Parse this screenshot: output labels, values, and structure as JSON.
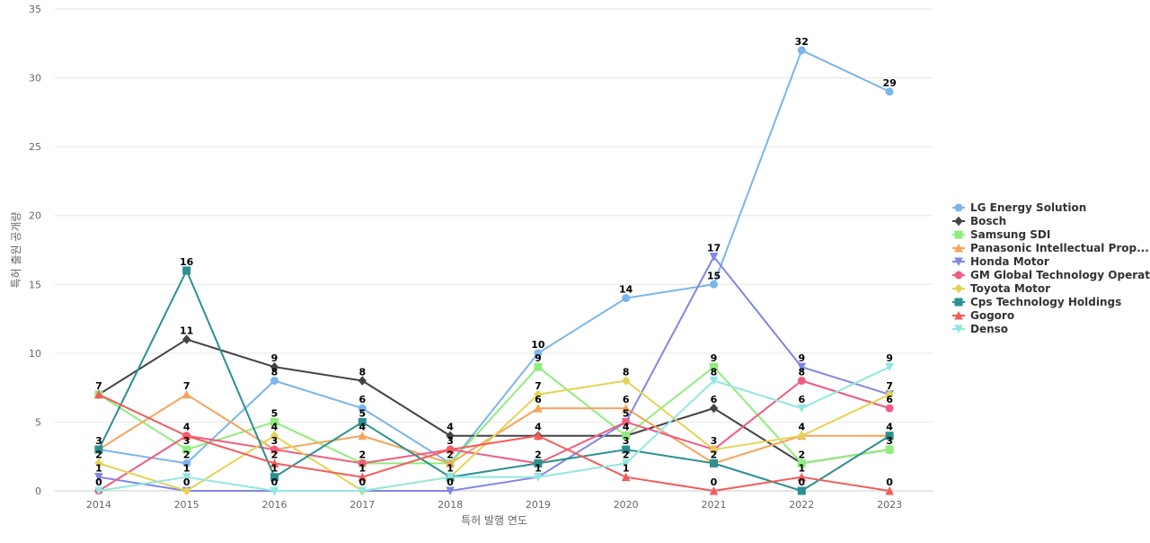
{
  "chart_data": {
    "type": "line",
    "xlabel": "특허 발행 연도",
    "ylabel": "특허 출원 공개량",
    "ylim": [
      0,
      35
    ],
    "yticks": [
      0,
      5,
      10,
      15,
      20,
      25,
      30,
      35
    ],
    "grid": true,
    "legend": "right",
    "categories": [
      "2014",
      "2015",
      "2016",
      "2017",
      "2018",
      "2019",
      "2020",
      "2021",
      "2022",
      "2023"
    ],
    "series": [
      {
        "name": "LG Energy Solution",
        "color": "#7cb5ec",
        "marker": "circle",
        "values": [
          3,
          2,
          8,
          6,
          2,
          10,
          14,
          15,
          32,
          29
        ]
      },
      {
        "name": "Bosch",
        "color": "#434348",
        "marker": "diamond",
        "values": [
          7,
          11,
          9,
          8,
          4,
          4,
          4,
          6,
          2,
          3
        ]
      },
      {
        "name": "Samsung SDI",
        "color": "#90ed7d",
        "marker": "square",
        "values": [
          7,
          3,
          5,
          2,
          2,
          9,
          4,
          9,
          2,
          3
        ]
      },
      {
        "name": "Panasonic Intellectual Prop...",
        "color": "#f7a35c",
        "marker": "triangle",
        "values": [
          3,
          7,
          3,
          4,
          2,
          6,
          6,
          2,
          4,
          4
        ]
      },
      {
        "name": "Honda Motor",
        "color": "#8085e9",
        "marker": "triangle-down",
        "values": [
          1,
          0,
          0,
          0,
          0,
          1,
          5,
          17,
          9,
          7
        ]
      },
      {
        "name": "GM Global Technology Operat...",
        "color": "#f15c80",
        "marker": "circle",
        "values": [
          0,
          4,
          3,
          2,
          3,
          2,
          5,
          3,
          8,
          6
        ]
      },
      {
        "name": "Toyota Motor",
        "color": "#e4d354",
        "marker": "diamond",
        "values": [
          2,
          0,
          4,
          0,
          1,
          7,
          8,
          3,
          4,
          7
        ]
      },
      {
        "name": "Cps Technology Holdings",
        "color": "#2b908f",
        "marker": "square",
        "values": [
          3,
          16,
          1,
          5,
          1,
          2,
          3,
          2,
          0,
          4
        ]
      },
      {
        "name": "Gogoro",
        "color": "#f45b5b",
        "marker": "triangle",
        "values": [
          7,
          4,
          2,
          1,
          3,
          4,
          1,
          0,
          1,
          0
        ]
      },
      {
        "name": "Denso",
        "color": "#91e8e1",
        "marker": "triangle-down",
        "values": [
          0,
          1,
          0,
          0,
          1,
          1,
          2,
          8,
          6,
          9
        ]
      }
    ],
    "data_labels": [
      {
        "cat": 0,
        "value": 7
      },
      {
        "cat": 0,
        "value": 3
      },
      {
        "cat": 0,
        "value": 2
      },
      {
        "cat": 0,
        "value": 1
      },
      {
        "cat": 0,
        "value": 0
      },
      {
        "cat": 1,
        "value": 16
      },
      {
        "cat": 1,
        "value": 11
      },
      {
        "cat": 1,
        "value": 7
      },
      {
        "cat": 1,
        "value": 4
      },
      {
        "cat": 1,
        "value": 3
      },
      {
        "cat": 1,
        "value": 2
      },
      {
        "cat": 1,
        "value": 1
      },
      {
        "cat": 1,
        "value": 0
      },
      {
        "cat": 2,
        "value": 9
      },
      {
        "cat": 2,
        "value": 8
      },
      {
        "cat": 2,
        "value": 5
      },
      {
        "cat": 2,
        "value": 4
      },
      {
        "cat": 2,
        "value": 3
      },
      {
        "cat": 2,
        "value": 2
      },
      {
        "cat": 2,
        "value": 1
      },
      {
        "cat": 2,
        "value": 0
      },
      {
        "cat": 3,
        "value": 8
      },
      {
        "cat": 3,
        "value": 6
      },
      {
        "cat": 3,
        "value": 5
      },
      {
        "cat": 3,
        "value": 4
      },
      {
        "cat": 3,
        "value": 2
      },
      {
        "cat": 3,
        "value": 1
      },
      {
        "cat": 3,
        "value": 0
      },
      {
        "cat": 4,
        "value": 4
      },
      {
        "cat": 4,
        "value": 3
      },
      {
        "cat": 4,
        "value": 2
      },
      {
        "cat": 4,
        "value": 1
      },
      {
        "cat": 4,
        "value": 0
      },
      {
        "cat": 5,
        "value": 10
      },
      {
        "cat": 5,
        "value": 9
      },
      {
        "cat": 5,
        "value": 7
      },
      {
        "cat": 5,
        "value": 6
      },
      {
        "cat": 5,
        "value": 4
      },
      {
        "cat": 5,
        "value": 2
      },
      {
        "cat": 5,
        "value": 1
      },
      {
        "cat": 6,
        "value": 14
      },
      {
        "cat": 6,
        "value": 8
      },
      {
        "cat": 6,
        "value": 6
      },
      {
        "cat": 6,
        "value": 5
      },
      {
        "cat": 6,
        "value": 4
      },
      {
        "cat": 6,
        "value": 3
      },
      {
        "cat": 6,
        "value": 2
      },
      {
        "cat": 6,
        "value": 1
      },
      {
        "cat": 7,
        "value": 17
      },
      {
        "cat": 7,
        "value": 15
      },
      {
        "cat": 7,
        "value": 9
      },
      {
        "cat": 7,
        "value": 8
      },
      {
        "cat": 7,
        "value": 6
      },
      {
        "cat": 7,
        "value": 3
      },
      {
        "cat": 7,
        "value": 2
      },
      {
        "cat": 7,
        "value": 0
      },
      {
        "cat": 8,
        "value": 32
      },
      {
        "cat": 8,
        "value": 9
      },
      {
        "cat": 8,
        "value": 8
      },
      {
        "cat": 8,
        "value": 6
      },
      {
        "cat": 8,
        "value": 4
      },
      {
        "cat": 8,
        "value": 2
      },
      {
        "cat": 8,
        "value": 1
      },
      {
        "cat": 8,
        "value": 0
      },
      {
        "cat": 9,
        "value": 29
      },
      {
        "cat": 9,
        "value": 9
      },
      {
        "cat": 9,
        "value": 7
      },
      {
        "cat": 9,
        "value": 6
      },
      {
        "cat": 9,
        "value": 4
      },
      {
        "cat": 9,
        "value": 3
      },
      {
        "cat": 9,
        "value": 0
      }
    ]
  }
}
